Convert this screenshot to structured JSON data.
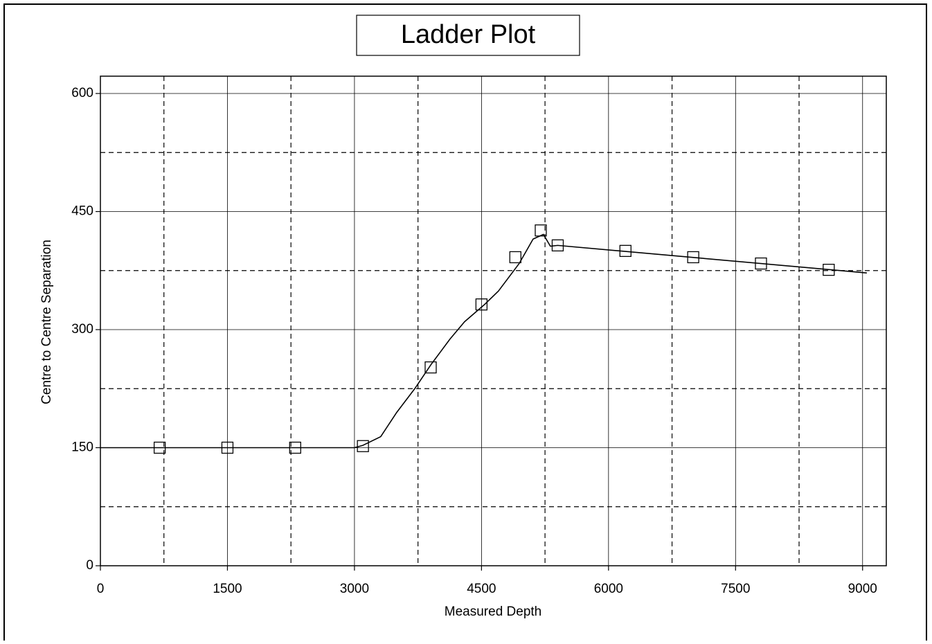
{
  "chart_data": {
    "type": "line",
    "title": "Ladder Plot",
    "x_label": "Measured Depth",
    "y_label": "Centre to Centre Separation",
    "xlim": [
      0,
      9280
    ],
    "ylim": [
      0,
      622
    ],
    "xticks": [
      0,
      1500,
      3000,
      4500,
      6000,
      7500,
      9000
    ],
    "yticks": [
      0,
      150,
      300,
      450,
      600
    ],
    "minor_xticks": [
      750,
      2250,
      3750,
      5250,
      6750,
      8250
    ],
    "minor_yticks": [
      75,
      225,
      375,
      525
    ],
    "grid": true,
    "color": "#000000",
    "line": {
      "x": [
        0,
        3000,
        3100,
        3310,
        3500,
        3719,
        3900,
        4128,
        4300,
        4537,
        4700,
        4945,
        5109,
        5231,
        5313,
        5400,
        9050
      ],
      "values": [
        150,
        150,
        153,
        164,
        195,
        226,
        255,
        288,
        310,
        332,
        349,
        384,
        415,
        421,
        406,
        407,
        372
      ]
    },
    "markers": {
      "x": [
        700,
        1500,
        2300,
        3100,
        3900,
        4500,
        4900,
        5200,
        5400,
        6200,
        7000,
        7800,
        8600
      ],
      "values": [
        150,
        150,
        150,
        152,
        252,
        332,
        392,
        426,
        407,
        400,
        392,
        384,
        376
      ]
    }
  }
}
